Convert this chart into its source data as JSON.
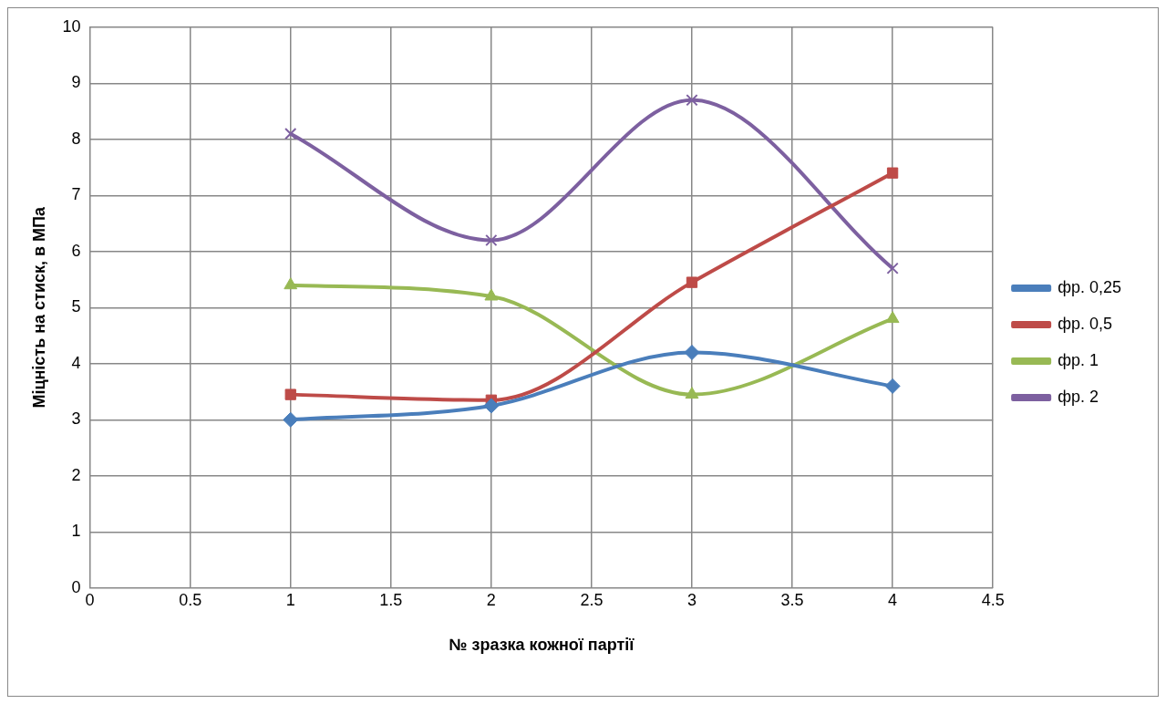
{
  "chart_data": {
    "type": "line",
    "xlabel": "№ зразка кожної партії",
    "ylabel": "Міцність на стиск, в МПа",
    "x": [
      1,
      2,
      3,
      4
    ],
    "xlim": [
      0,
      4.5
    ],
    "xticks": [
      0,
      0.5,
      1,
      1.5,
      2,
      2.5,
      3,
      3.5,
      4,
      4.5
    ],
    "ylim": [
      0,
      10
    ],
    "yticks": [
      0,
      1,
      2,
      3,
      4,
      5,
      6,
      7,
      8,
      9,
      10
    ],
    "grid": true,
    "legend": "right",
    "series": [
      {
        "name": "фр. 0,25",
        "color": "#4a7ebb",
        "marker": "diamond",
        "values": [
          3.0,
          3.25,
          4.2,
          3.6
        ]
      },
      {
        "name": "фр. 0,5",
        "color": "#be4b48",
        "marker": "square",
        "values": [
          3.45,
          3.35,
          5.45,
          7.4
        ]
      },
      {
        "name": "фр. 1",
        "color": "#98b954",
        "marker": "triangle",
        "values": [
          5.4,
          5.2,
          3.45,
          4.8
        ]
      },
      {
        "name": "фр. 2",
        "color": "#7d60a0",
        "marker": "cross",
        "values": [
          8.1,
          6.2,
          8.7,
          5.7
        ]
      }
    ]
  }
}
